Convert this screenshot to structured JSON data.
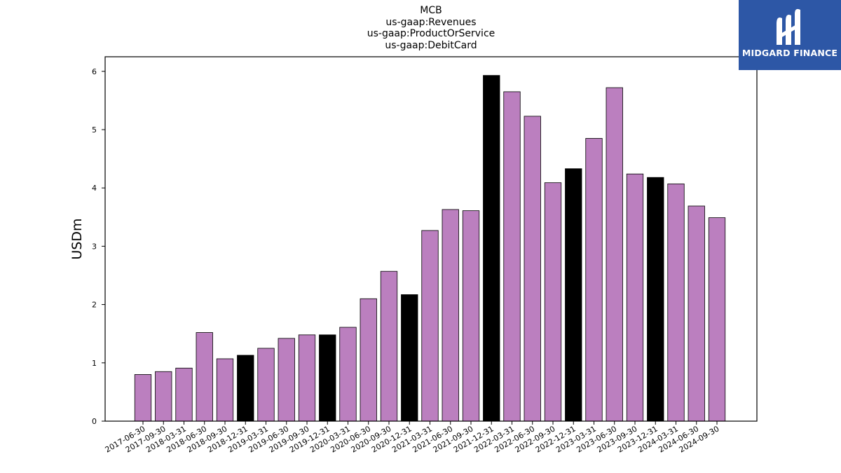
{
  "chart_data": {
    "type": "bar",
    "title_lines": [
      "MCB",
      "us-gaap:Revenues",
      "us-gaap:ProductOrService",
      "us-gaap:DebitCard"
    ],
    "xlabel": "",
    "ylabel": "USDm",
    "ylim": [
      0,
      6.25
    ],
    "yticks": [
      "0",
      "1",
      "2",
      "3",
      "4",
      "5",
      "6"
    ],
    "grid": false,
    "categories": [
      "2017-06-30",
      "2017-09-30",
      "2018-03-31",
      "2018-06-30",
      "2018-09-30",
      "2018-12-31",
      "2019-03-31",
      "2019-06-30",
      "2019-09-30",
      "2019-12-31",
      "2020-03-31",
      "2020-06-30",
      "2020-09-30",
      "2020-12-31",
      "2021-03-31",
      "2021-06-30",
      "2021-09-30",
      "2021-12-31",
      "2022-03-31",
      "2022-06-30",
      "2022-09-30",
      "2022-12-31",
      "2023-03-31",
      "2023-06-30",
      "2023-09-30",
      "2023-12-31",
      "2024-03-31",
      "2024-06-30",
      "2024-09-30"
    ],
    "values": [
      0.8,
      0.85,
      0.91,
      1.52,
      1.07,
      1.13,
      1.25,
      1.42,
      1.48,
      1.48,
      1.61,
      2.1,
      2.57,
      2.17,
      3.27,
      3.63,
      3.61,
      5.93,
      5.65,
      5.23,
      4.09,
      4.33,
      4.85,
      5.72,
      4.24,
      4.18,
      4.07,
      3.69,
      3.49
    ],
    "annual": [
      false,
      false,
      false,
      false,
      false,
      true,
      false,
      false,
      false,
      true,
      false,
      false,
      false,
      true,
      false,
      false,
      false,
      true,
      false,
      false,
      false,
      true,
      false,
      false,
      false,
      true,
      false,
      false,
      false
    ],
    "colors": {
      "quarter": "#bb7fbf",
      "annual": "#000000",
      "edge": "#000000"
    }
  },
  "logo": {
    "text": "MIDGARD FINANCE",
    "background": "#2d57a6"
  }
}
